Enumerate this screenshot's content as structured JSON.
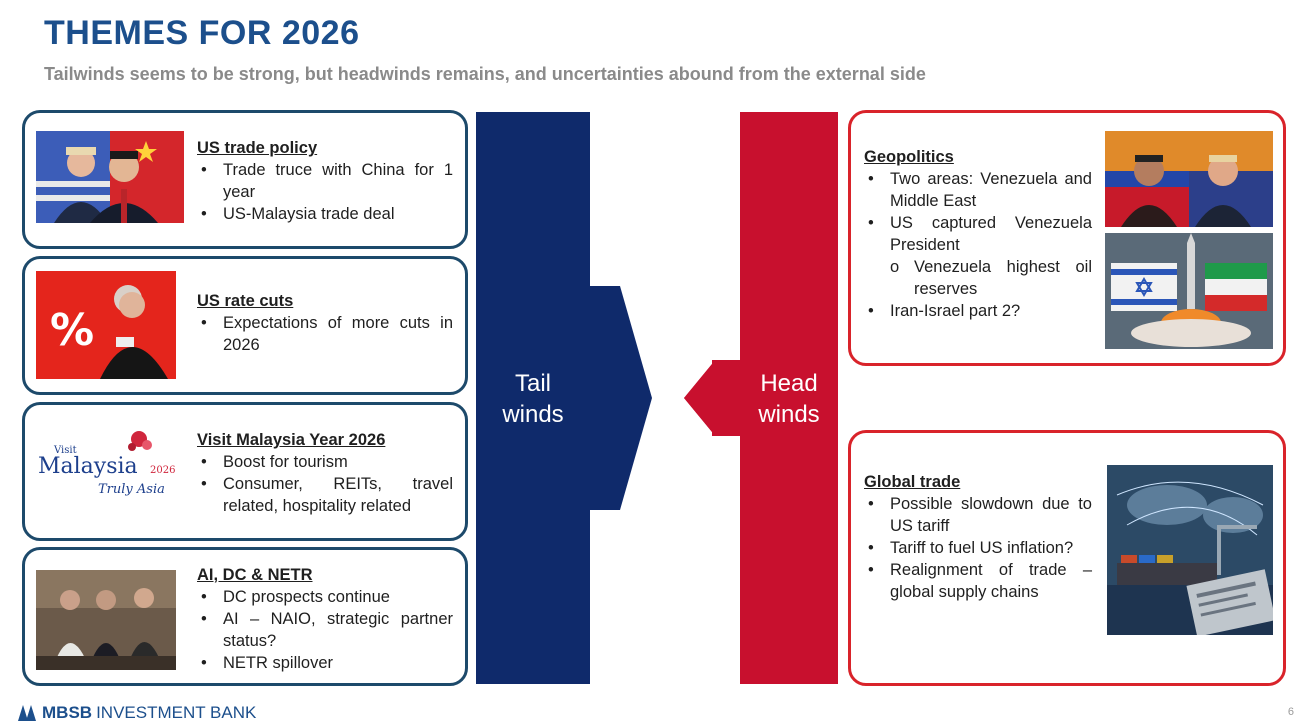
{
  "title": "THEMES FOR 2026",
  "subtitle": "Tailwinds seems to be strong, but headwinds remains, and uncertainties abound from the external side",
  "tailwinds": {
    "label_line1": "Tail",
    "label_line2": "winds",
    "color": "#0f2a6b",
    "cards": [
      {
        "heading": "US trade policy",
        "bullets": [
          "Trade truce with China for 1 year",
          "US-Malaysia trade deal"
        ]
      },
      {
        "heading": "US rate cuts",
        "image_text": "%",
        "bullets": [
          "Expectations of more cuts in 2026"
        ]
      },
      {
        "heading": "Visit Malaysia Year 2026",
        "logo": {
          "visit": "Visit",
          "name": "Malaysia",
          "year": "2026",
          "tagline": "Truly Asia"
        },
        "bullets": [
          "Boost for tourism",
          "Consumer, REITs, travel related, hospitality related"
        ]
      },
      {
        "heading": "AI, DC & NETR",
        "bullets": [
          "DC prospects continue",
          "AI – NAIO, strategic partner status?",
          "NETR spillover"
        ]
      }
    ]
  },
  "headwinds": {
    "label_line1": "Head",
    "label_line2": "winds",
    "color": "#c8102e",
    "cards": [
      {
        "heading": "Geopolitics",
        "bullets": [
          "Two areas: Venezuela and Middle East",
          "US captured Venezuela President"
        ],
        "sub_bullet": "Venezuela highest oil reserves",
        "last_bullet": "Iran-Israel part 2?"
      },
      {
        "heading": "Global trade",
        "bullets": [
          "Possible slowdown due to US tariff",
          "Tariff to fuel US inflation?",
          "Realignment of trade – global supply chains"
        ]
      }
    ]
  },
  "footer": {
    "brand_bold": "MBSB",
    "brand_rest": "INVESTMENT BANK",
    "page_number": "6"
  }
}
